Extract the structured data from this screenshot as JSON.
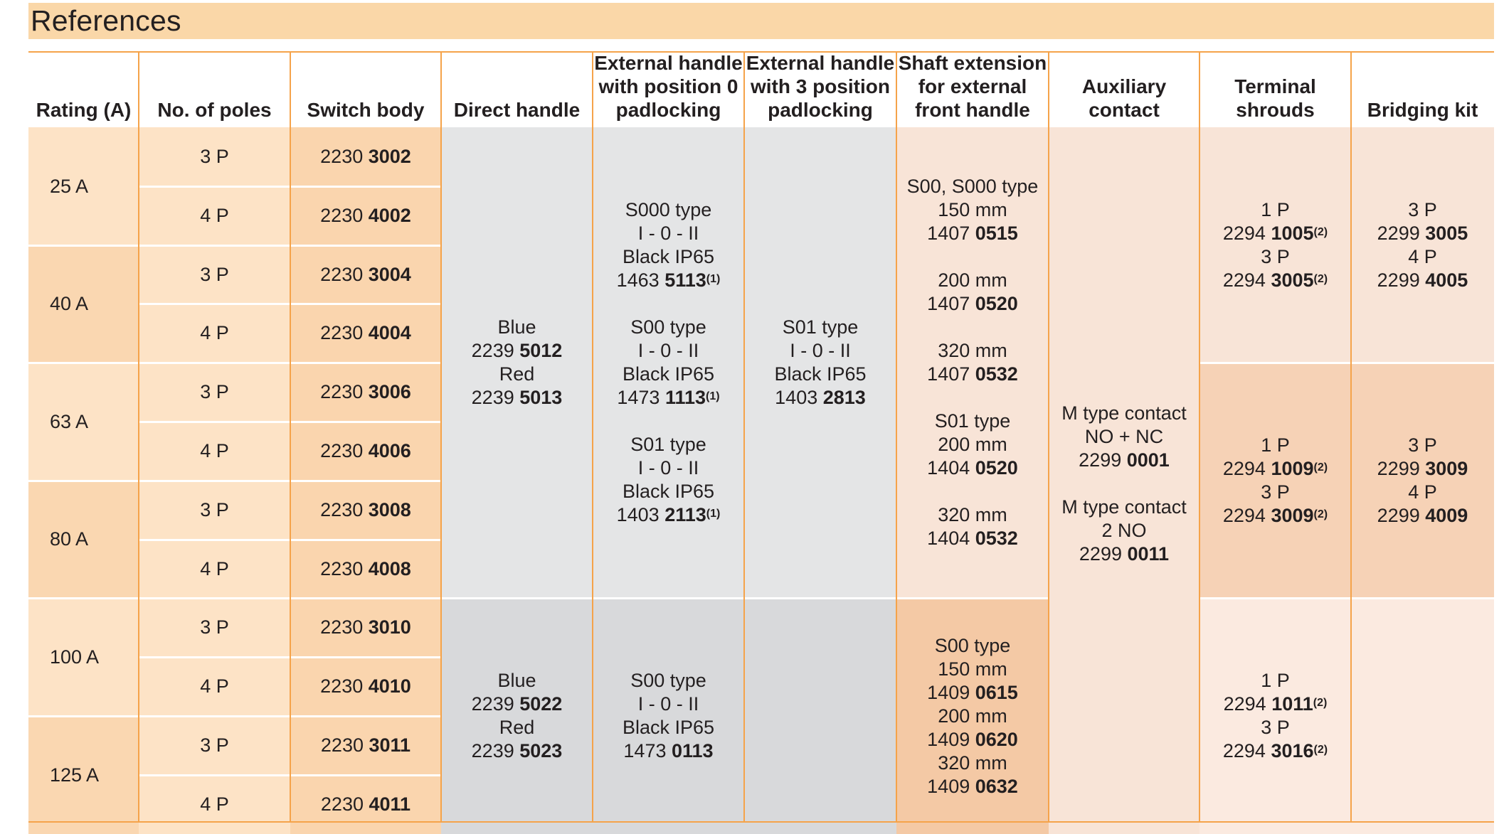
{
  "title": "References",
  "headers": {
    "rating": "Rating (A)",
    "poles": "No. of poles",
    "switch_body": "Switch body",
    "direct_handle": "Direct handle",
    "ext_handle_0": [
      "External handle",
      "with position 0",
      "padlocking"
    ],
    "ext_handle_3": [
      "External handle",
      "with 3 position",
      "padlocking"
    ],
    "shaft_ext": [
      "Shaft extension",
      "for external",
      "front handle"
    ],
    "auxiliary": [
      "Auxiliary",
      "contact"
    ],
    "terminal": [
      "Terminal",
      "shrouds"
    ],
    "bridging": "Bridging kit"
  },
  "ratings": [
    "25 A",
    "40 A",
    "63 A",
    "80 A",
    "100 A",
    "125 A"
  ],
  "poles": [
    "3 P",
    "4 P",
    "3 P",
    "4 P",
    "3 P",
    "4 P",
    "3 P",
    "4 P",
    "3 P",
    "4 P",
    "3 P",
    "4 P"
  ],
  "switch_bodies": [
    {
      "prefix": "2230",
      "code": "3002"
    },
    {
      "prefix": "2230",
      "code": "4002"
    },
    {
      "prefix": "2230",
      "code": "3004"
    },
    {
      "prefix": "2230",
      "code": "4004"
    },
    {
      "prefix": "2230",
      "code": "3006"
    },
    {
      "prefix": "2230",
      "code": "4006"
    },
    {
      "prefix": "2230",
      "code": "3008"
    },
    {
      "prefix": "2230",
      "code": "4008"
    },
    {
      "prefix": "2230",
      "code": "3010"
    },
    {
      "prefix": "2230",
      "code": "4010"
    },
    {
      "prefix": "2230",
      "code": "3011"
    },
    {
      "prefix": "2230",
      "code": "4011"
    }
  ],
  "direct_handle": {
    "top": {
      "blue_label": "Blue",
      "blue_prefix": "2239",
      "blue_code": "5012",
      "red_label": "Red",
      "red_prefix": "2239",
      "red_code": "5013"
    },
    "bottom": {
      "blue_label": "Blue",
      "blue_prefix": "2239",
      "blue_code": "5022",
      "red_label": "Red",
      "red_prefix": "2239",
      "red_code": "5023"
    }
  },
  "ext_handle_0": {
    "top": [
      {
        "type": "S000 type",
        "pos": "I - 0 - II",
        "desc": "Black IP65",
        "prefix": "1463",
        "code": "5113",
        "note": "(1)"
      },
      {
        "type": "S00 type",
        "pos": "I - 0 - II",
        "desc": "Black IP65",
        "prefix": "1473",
        "code": "1113",
        "note": "(1)"
      },
      {
        "type": "S01 type",
        "pos": "I - 0 - II",
        "desc": "Black IP65",
        "prefix": "1403",
        "code": "2113",
        "note": "(1)"
      }
    ],
    "bottom": {
      "type": "S00 type",
      "pos": "I - 0 - II",
      "desc": "Black IP65",
      "prefix": "1473",
      "code": "0113"
    }
  },
  "ext_handle_3": {
    "top": {
      "type": "S01 type",
      "pos": "I - 0 - II",
      "desc": "Black IP65",
      "prefix": "1403",
      "code": "2813"
    }
  },
  "shaft_ext": {
    "top": {
      "s00_type": "S00, S000 type",
      "s00_150": "150 mm",
      "s00_150_prefix": "1407",
      "s00_150_code": "0515",
      "s00_200": "200 mm",
      "s00_200_prefix": "1407",
      "s00_200_code": "0520",
      "s00_320": "320 mm",
      "s00_320_prefix": "1407",
      "s00_320_code": "0532",
      "s01_type": "S01 type",
      "s01_200": "200 mm",
      "s01_200_prefix": "1404",
      "s01_200_code": "0520",
      "s01_320": "320 mm",
      "s01_320_prefix": "1404",
      "s01_320_code": "0532"
    },
    "bottom": {
      "type": "S00 type",
      "l150": "150 mm",
      "p150": "1409",
      "c150": "0615",
      "l200": "200 mm",
      "p200": "1409",
      "c200": "0620",
      "l320": "320 mm",
      "p320": "1409",
      "c320": "0632"
    }
  },
  "auxiliary": {
    "a_type": "M type contact",
    "a_desc": "NO + NC",
    "a_prefix": "2299",
    "a_code": "0001",
    "b_type": "M type contact",
    "b_desc": "2 NO",
    "b_prefix": "2299",
    "b_code": "0011"
  },
  "terminal": [
    {
      "p1": "1 P",
      "p1_prefix": "2294",
      "p1_code": "1005",
      "p1_note": "(2)",
      "p3": "3 P",
      "p3_prefix": "2294",
      "p3_code": "3005",
      "p3_note": "(2)"
    },
    {
      "p1": "1 P",
      "p1_prefix": "2294",
      "p1_code": "1009",
      "p1_note": "(2)",
      "p3": "3 P",
      "p3_prefix": "2294",
      "p3_code": "3009",
      "p3_note": "(2)"
    },
    {
      "p1": "1 P",
      "p1_prefix": "2294",
      "p1_code": "1011",
      "p1_note": "(2)",
      "p3": "3 P",
      "p3_prefix": "2294",
      "p3_code": "3016",
      "p3_note": "(2)"
    }
  ],
  "bridging": [
    {
      "p3": "3 P",
      "p3_prefix": "2299",
      "p3_code": "3005",
      "p4": "4 P",
      "p4_prefix": "2299",
      "p4_code": "4005"
    },
    {
      "p3": "3 P",
      "p3_prefix": "2299",
      "p3_code": "3009",
      "p4": "4 P",
      "p4_prefix": "2299",
      "p4_code": "4009"
    }
  ],
  "colors": {
    "title_bg": "#fad7a8",
    "accent_line": "#f5a34a",
    "rating_light": "#fde3c6",
    "rating_dark": "#fad7b1",
    "poles_bg": "#fde3c6",
    "switch_bg": "#fad5ae",
    "grey_light": "#e4e5e6",
    "grey_dark": "#d8d9db",
    "peach": "#f8e4d7",
    "peach_light": "#fbeae0",
    "peach_dark": "#f6d2b6",
    "shaft_bottom": "#f4c9a5"
  }
}
